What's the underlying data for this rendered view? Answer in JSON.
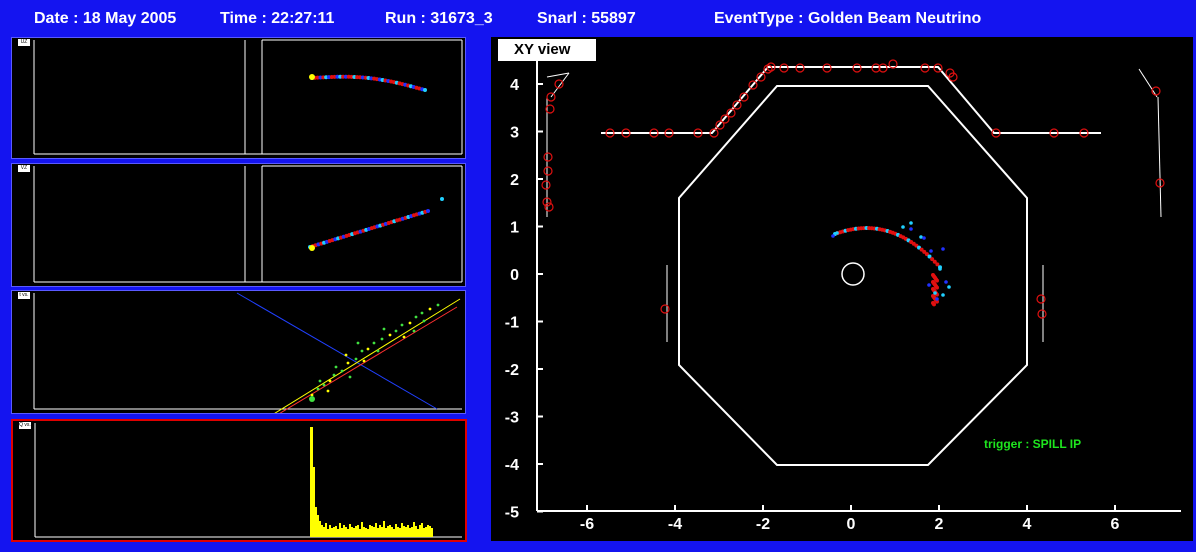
{
  "header": {
    "date": "Date : 18 May 2005",
    "time": "Time : 22:27:11",
    "run": "Run : 31673_3",
    "snarl": "Snarl : 55897",
    "event_type": "EventType : Golden Beam Neutrino"
  },
  "xy_view": {
    "label": "XY view",
    "trigger": "trigger : SPILL IP",
    "x_ticks": [
      "-6",
      "-4",
      "-2",
      "0",
      "2",
      "4",
      "6"
    ],
    "y_ticks": [
      "4",
      "3",
      "2",
      "1",
      "0",
      "-1",
      "-2",
      "-3",
      "-4",
      "-5"
    ]
  },
  "small_panels": {
    "uz_tag": "UZ",
    "vz_tag": "VZ",
    "tz_tag": "t vs. z",
    "qz_tag": "Q vs. z"
  },
  "colors": {
    "background": "#1414f0",
    "plot_bg": "#000000",
    "hit_red": "#e01010",
    "hit_blue": "#2030ff",
    "hit_cyan": "#20d0ff",
    "hist_yellow": "#ffff00",
    "trigger_green": "#1ee51e"
  }
}
